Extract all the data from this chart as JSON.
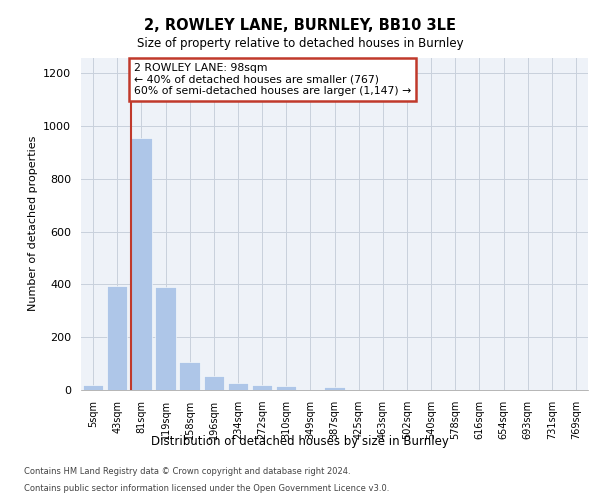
{
  "title_line1": "2, ROWLEY LANE, BURNLEY, BB10 3LE",
  "title_line2": "Size of property relative to detached houses in Burnley",
  "xlabel": "Distribution of detached houses by size in Burnley",
  "ylabel": "Number of detached properties",
  "footer_line1": "Contains HM Land Registry data © Crown copyright and database right 2024.",
  "footer_line2": "Contains public sector information licensed under the Open Government Licence v3.0.",
  "annotation_line1": "2 ROWLEY LANE: 98sqm",
  "annotation_line2": "← 40% of detached houses are smaller (767)",
  "annotation_line3": "60% of semi-detached houses are larger (1,147) →",
  "bar_color": "#aec6e8",
  "marker_color": "#c0392b",
  "annotation_box_color": "#c0392b",
  "ylim": [
    0,
    1260
  ],
  "yticks": [
    0,
    200,
    400,
    600,
    800,
    1000,
    1200
  ],
  "categories": [
    "5sqm",
    "43sqm",
    "81sqm",
    "119sqm",
    "158sqm",
    "196sqm",
    "234sqm",
    "272sqm",
    "310sqm",
    "349sqm",
    "387sqm",
    "425sqm",
    "463sqm",
    "502sqm",
    "540sqm",
    "578sqm",
    "616sqm",
    "654sqm",
    "693sqm",
    "731sqm",
    "769sqm"
  ],
  "values": [
    18,
    395,
    955,
    390,
    108,
    52,
    27,
    18,
    14,
    0,
    13,
    0,
    0,
    0,
    0,
    0,
    0,
    0,
    0,
    0,
    0
  ],
  "property_bar_index": 2,
  "bar_width": 0.85,
  "figsize": [
    6.0,
    5.0
  ],
  "dpi": 100
}
